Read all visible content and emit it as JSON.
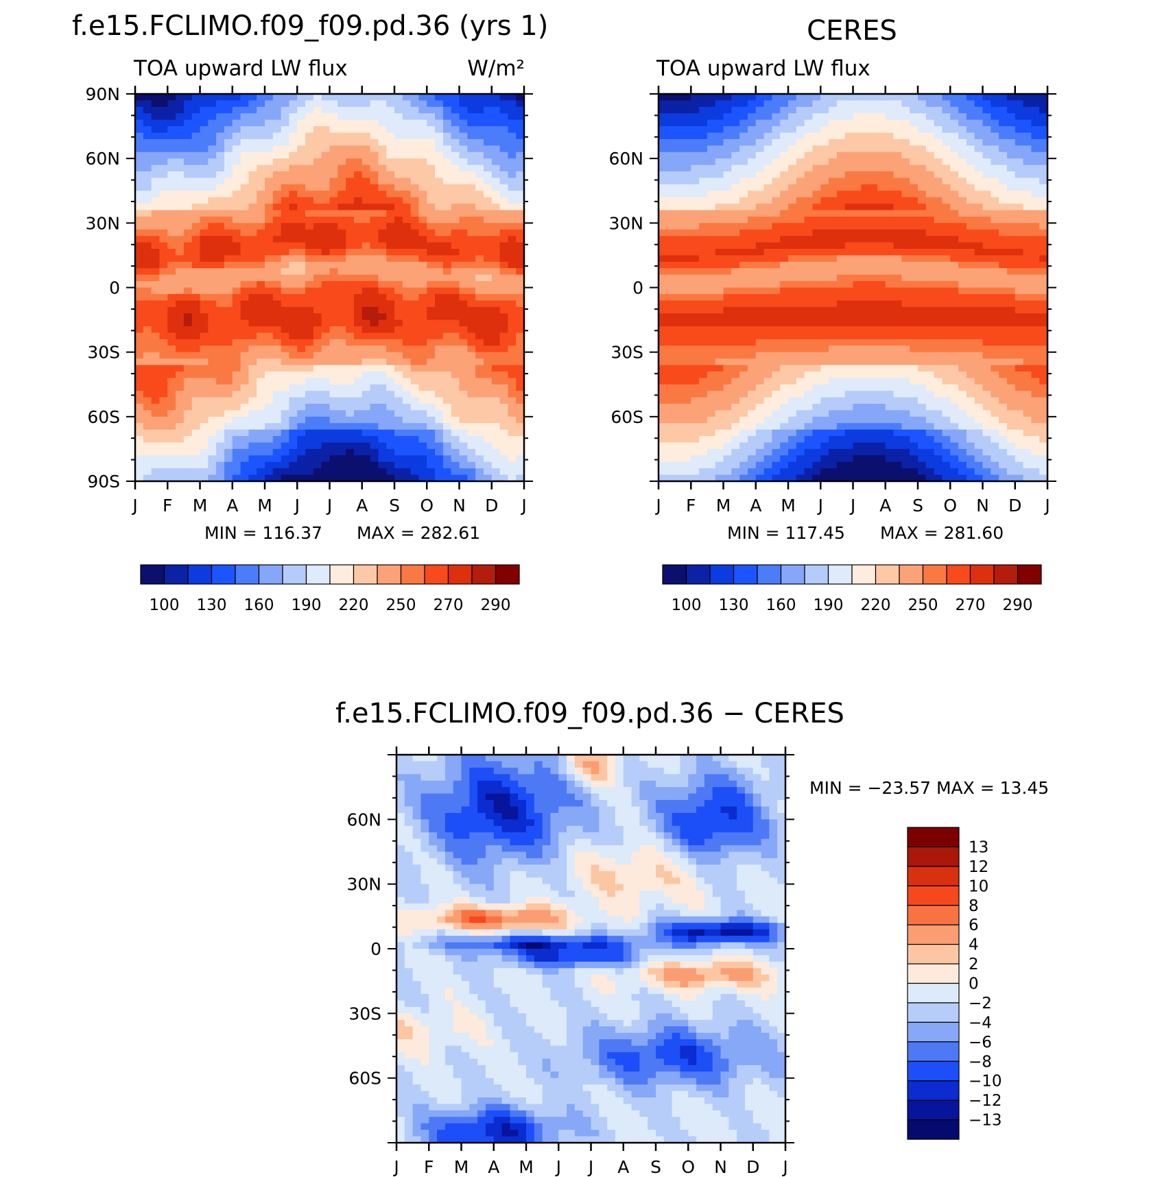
{
  "chart_data": [
    {
      "type": "heatmap",
      "title": "f.e15.FCLIMO.f09_f09.pd.36 (yrs 1)",
      "left_label": "TOA upward LW flux",
      "right_label": "W/m²",
      "xtick_labels": [
        "J",
        "F",
        "M",
        "A",
        "M",
        "J",
        "J",
        "A",
        "S",
        "O",
        "N",
        "D",
        "J"
      ],
      "ytick_labels": [
        "90N",
        "60N",
        "30N",
        "0",
        "30S",
        "60S",
        "90S"
      ],
      "yticks": [
        90,
        60,
        30,
        0,
        -30,
        -60,
        -90
      ],
      "ylim": [
        -90,
        90
      ],
      "min_label": "MIN = 116.37",
      "max_label": "MAX = 282.61",
      "min": 116.37,
      "max": 282.61,
      "colorbar_labels": [
        "100",
        "130",
        "160",
        "190",
        "220",
        "250",
        "270",
        "290"
      ],
      "model": "model"
    },
    {
      "type": "heatmap",
      "title": "CERES",
      "left_label": "TOA upward LW flux",
      "right_label": "",
      "xtick_labels": [
        "J",
        "F",
        "M",
        "A",
        "M",
        "J",
        "J",
        "A",
        "S",
        "O",
        "N",
        "D",
        "J"
      ],
      "ytick_labels": [
        "60N",
        "30N",
        "0",
        "30S",
        "60S"
      ],
      "yticks": [
        60,
        30,
        0,
        -30,
        -60
      ],
      "ylim": [
        -90,
        90
      ],
      "min_label": "MIN = 117.45",
      "max_label": "MAX = 281.60",
      "min": 117.45,
      "max": 281.6,
      "colorbar_labels": [
        "100",
        "130",
        "160",
        "190",
        "220",
        "250",
        "270",
        "290"
      ],
      "model": "obs"
    },
    {
      "type": "heatmap",
      "title": "f.e15.FCLIMO.f09_f09.pd.36 − CERES",
      "xtick_labels": [
        "J",
        "F",
        "M",
        "A",
        "M",
        "J",
        "J",
        "A",
        "S",
        "O",
        "N",
        "D",
        "J"
      ],
      "ytick_labels": [
        "60N",
        "30N",
        "0",
        "30S",
        "60S"
      ],
      "yticks": [
        60,
        30,
        0,
        -30,
        -60
      ],
      "ylim": [
        -90,
        90
      ],
      "minmax_label": "MIN = −23.57 MAX =  13.45",
      "min": -23.57,
      "max": 13.45,
      "colorbar_labels": [
        "13",
        "12",
        "10",
        "8",
        "6",
        "4",
        "2",
        "0",
        "−2",
        "−4",
        "−6",
        "−8",
        "−10",
        "−12",
        "−13"
      ],
      "model": "diff"
    }
  ],
  "colors": {
    "abs_scale": [
      "#0b0f6e",
      "#0b21a6",
      "#0c3be0",
      "#1c55ff",
      "#4b7dfb",
      "#85a6f9",
      "#b5cbfa",
      "#dfeafb",
      "#feeddd",
      "#fdc8a6",
      "#fca277",
      "#fa7943",
      "#f94a1b",
      "#de300d",
      "#b41c0c",
      "#820000"
    ],
    "diff_scale": [
      "#050a6e",
      "#07159c",
      "#0a2cd0",
      "#1c4ff7",
      "#4e79f5",
      "#86a8f6",
      "#b6cdfa",
      "#dceaf9",
      "#fdeadc",
      "#fcc6a3",
      "#fb9d72",
      "#f97342",
      "#f6481c",
      "#d9300f",
      "#ab1708",
      "#7c0000"
    ]
  }
}
